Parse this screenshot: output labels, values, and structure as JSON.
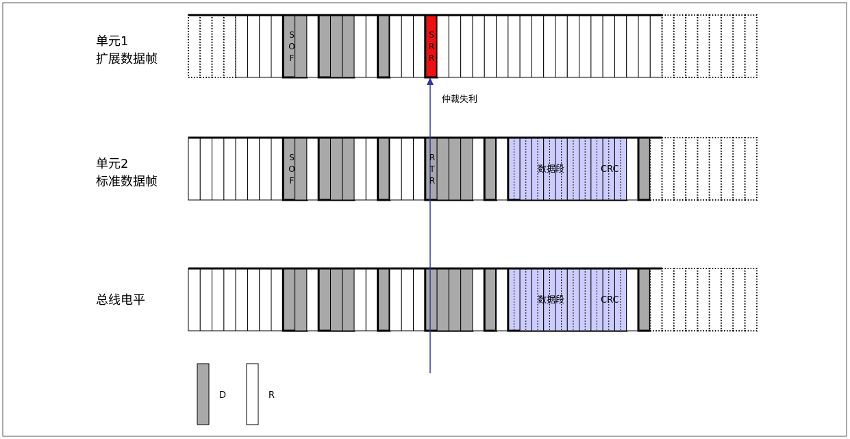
{
  "rows": [
    {
      "label_lines": [
        "单元1",
        "扩展数据帧"
      ],
      "sof": "SOF",
      "srr": "SRR"
    },
    {
      "label_lines": [
        "单元2",
        "标准数据帧"
      ],
      "sof": "SOF",
      "rtr": "RTR",
      "data": "数据段",
      "crc": "CRC"
    },
    {
      "label_lines": [
        "总线电平"
      ],
      "data": "数据段",
      "crc": "CRC"
    }
  ],
  "annotation": "仲裁失利",
  "legend": [
    {
      "label": "D"
    },
    {
      "label": "R"
    }
  ]
}
